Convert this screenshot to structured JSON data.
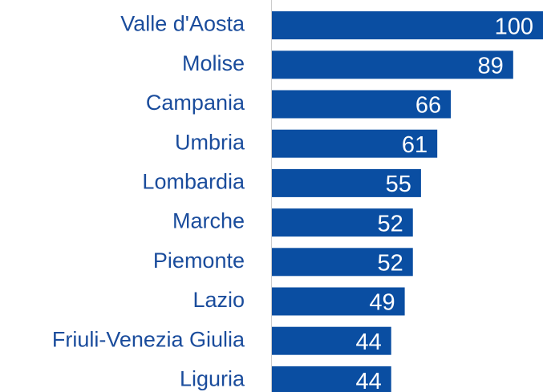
{
  "chart_data": {
    "type": "hbar",
    "categories": [
      "Valle d'Aosta",
      "Molise",
      "Campania",
      "Umbria",
      "Lombardia",
      "Marche",
      "Piemonte",
      "Lazio",
      "Friuli-Venezia Giulia",
      "Liguria"
    ],
    "values": [
      100,
      89,
      66,
      61,
      55,
      52,
      52,
      49,
      44,
      44
    ],
    "color": "#0a4ea2",
    "xlim": [
      0,
      100
    ]
  }
}
